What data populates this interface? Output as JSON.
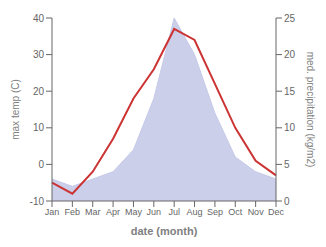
{
  "chart_data": {
    "type": "line",
    "categories": [
      "Jan",
      "Feb",
      "Mar",
      "Apr",
      "May",
      "Jun",
      "Jul",
      "Aug",
      "Sep",
      "Oct",
      "Nov",
      "Dec"
    ],
    "xlabel": "date (month)",
    "ylabel": "max temp (C)",
    "y2label": "med. precipitation (kg/m2)",
    "ylim": [
      -10,
      40
    ],
    "yticks": [
      -10,
      0,
      10,
      20,
      30,
      40
    ],
    "y2lim": [
      0,
      25
    ],
    "y2ticks": [
      0,
      5,
      10,
      15,
      20,
      25
    ],
    "series": [
      {
        "type": "area",
        "axis": "y2",
        "color": "#c5cae8",
        "values": [
          3,
          2,
          3,
          4,
          7,
          14,
          25,
          20,
          12,
          6,
          4,
          3
        ]
      },
      {
        "type": "line",
        "color": "#cc3333",
        "values": [
          -5,
          -8,
          -2,
          7,
          18,
          26,
          37,
          34,
          22,
          10,
          1,
          -3
        ]
      }
    ]
  }
}
